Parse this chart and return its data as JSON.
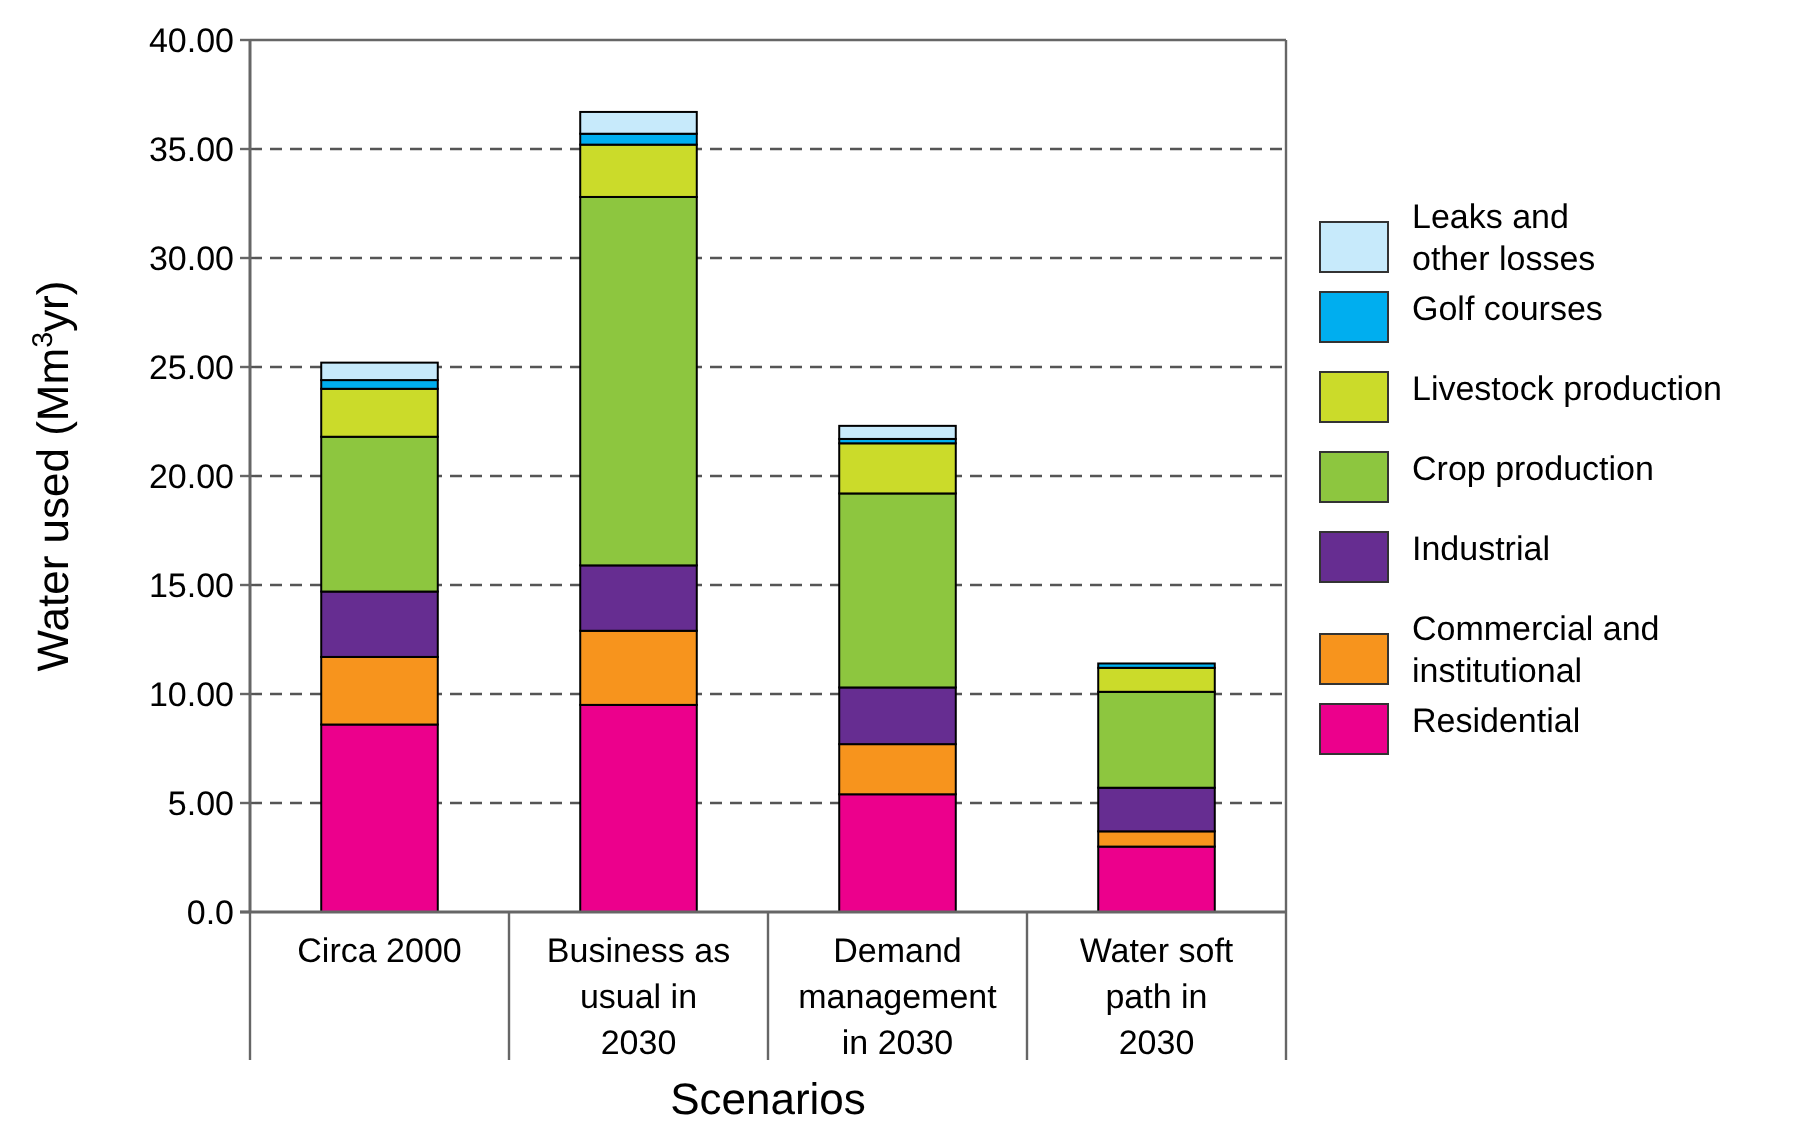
{
  "chart_data": {
    "type": "bar",
    "stacked": true,
    "xlabel": "Scenarios",
    "ylabel": "Water used (Mm$^{3}$yr)",
    "categories": [
      "Circa 2000",
      "Business as usual in 2030",
      "Demand management in 2030",
      "Water soft path in 2030"
    ],
    "series": [
      {
        "name": "Residential",
        "color": "#ec008c",
        "values": [
          8.6,
          9.5,
          5.4,
          3.0
        ]
      },
      {
        "name": "Commercial and institutional",
        "color": "#f7941d",
        "values": [
          3.1,
          3.4,
          2.3,
          0.7
        ]
      },
      {
        "name": "Industrial",
        "color": "#662d91",
        "values": [
          3.0,
          3.0,
          2.6,
          2.0
        ]
      },
      {
        "name": "Crop production",
        "color": "#8dc63f",
        "values": [
          7.1,
          16.9,
          8.9,
          4.4
        ]
      },
      {
        "name": "Livestock production",
        "color": "#cbdb2a",
        "values": [
          2.2,
          2.4,
          2.3,
          1.1
        ]
      },
      {
        "name": "Golf courses",
        "color": "#00aeef",
        "values": [
          0.4,
          0.5,
          0.2,
          0.2
        ]
      },
      {
        "name": "Leaks and other losses",
        "color": "#c7eafb",
        "values": [
          0.8,
          1.0,
          0.6,
          0
        ]
      }
    ],
    "ylim": [
      0,
      40
    ],
    "yticks": [
      {
        "value": 0,
        "label": "0.0"
      },
      {
        "value": 5,
        "label": "5.00"
      },
      {
        "value": 10,
        "label": "10.00"
      },
      {
        "value": 15,
        "label": "15.00"
      },
      {
        "value": 20,
        "label": "20.00"
      },
      {
        "value": 25,
        "label": "25.00"
      },
      {
        "value": 30,
        "label": "30.00"
      },
      {
        "value": 35,
        "label": "35.00"
      },
      {
        "value": 40,
        "label": "40.00"
      }
    ],
    "grid": "y",
    "legend": "right"
  }
}
